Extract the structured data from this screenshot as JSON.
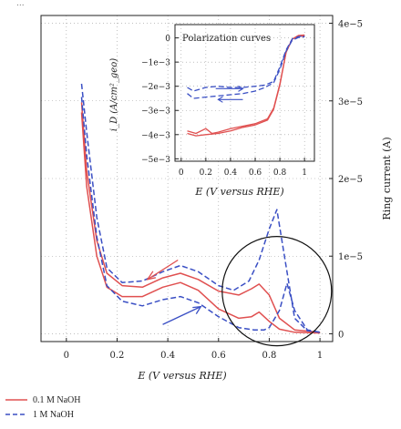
{
  "chart_data": [
    {
      "type": "line",
      "xlabel": "E (V versus RHE)",
      "ylabel_right": "Ring current (A)",
      "xlim": [
        -0.1,
        1.05
      ],
      "ylim": [
        -0.1,
        4.1
      ],
      "x_ticks": [
        {
          "value": 0,
          "label": "0"
        },
        {
          "value": 0.2,
          "label": "0.2"
        },
        {
          "value": 0.4,
          "label": "0.4"
        },
        {
          "value": 0.6,
          "label": "0.6"
        },
        {
          "value": 0.8,
          "label": "0.8"
        },
        {
          "value": 1.0,
          "label": "1"
        }
      ],
      "y_right_ticks": [
        {
          "value": 0,
          "label": "0"
        },
        {
          "value": 1,
          "label": "1e−5"
        },
        {
          "value": 2,
          "label": "2e−5"
        },
        {
          "value": 3,
          "label": "3e−5"
        },
        {
          "value": 4,
          "label": "4e−5"
        }
      ],
      "grid": true,
      "series": [
        {
          "name": "0.1 M NaOH",
          "color": "#e05050",
          "style": "solid",
          "segments": [
            {
              "x": [
                0.06,
                0.08,
                0.12,
                0.16,
                0.22,
                0.3,
                0.38,
                0.45,
                0.52,
                0.6,
                0.68,
                0.73,
                0.76,
                0.8,
                0.84,
                0.9,
                1.0
              ],
              "y": [
                2.98,
                2.1,
                1.2,
                0.78,
                0.62,
                0.6,
                0.72,
                0.78,
                0.7,
                0.55,
                0.5,
                0.58,
                0.64,
                0.5,
                0.2,
                0.05,
                0.02
              ]
            },
            {
              "x": [
                0.06,
                0.08,
                0.12,
                0.16,
                0.22,
                0.3,
                0.38,
                0.45,
                0.52,
                0.6,
                0.68,
                0.73,
                0.76,
                0.8,
                0.84,
                0.9,
                1.0
              ],
              "y": [
                2.85,
                1.9,
                1.0,
                0.6,
                0.48,
                0.48,
                0.6,
                0.66,
                0.56,
                0.32,
                0.2,
                0.22,
                0.28,
                0.16,
                0.06,
                0.02,
                0.01
              ]
            }
          ]
        },
        {
          "name": "1 M NaOH",
          "color": "#3a4fc4",
          "style": "dashed",
          "segments": [
            {
              "x": [
                0.06,
                0.08,
                0.12,
                0.16,
                0.22,
                0.3,
                0.38,
                0.45,
                0.52,
                0.6,
                0.66,
                0.72,
                0.76,
                0.8,
                0.83,
                0.86,
                0.9,
                0.95,
                1.0
              ],
              "y": [
                3.22,
                2.6,
                1.5,
                0.85,
                0.66,
                0.68,
                0.8,
                0.88,
                0.8,
                0.62,
                0.56,
                0.68,
                0.95,
                1.35,
                1.6,
                1.0,
                0.2,
                0.04,
                0.02
              ]
            },
            {
              "x": [
                0.06,
                0.08,
                0.12,
                0.16,
                0.22,
                0.3,
                0.38,
                0.45,
                0.52,
                0.6,
                0.68,
                0.74,
                0.78,
                0.8,
                0.84,
                0.87,
                0.9,
                0.95,
                1.0
              ],
              "y": [
                3.05,
                2.3,
                1.25,
                0.62,
                0.42,
                0.36,
                0.44,
                0.48,
                0.4,
                0.22,
                0.08,
                0.05,
                0.05,
                0.08,
                0.3,
                0.65,
                0.3,
                0.05,
                0.02
              ]
            }
          ]
        }
      ],
      "annotations": [
        "sweep-direction arrows (red: cathodic, blue: anodic)",
        "ellipse highlighting the 0.7–0.9 V region"
      ]
    },
    {
      "type": "line",
      "title": "Polarization curves",
      "xlabel": "E (V versus RHE)",
      "ylabel": "i_D (A/cm²_geo)",
      "xlim": [
        -0.05,
        1.08
      ],
      "ylim": [
        -5.1,
        0.55
      ],
      "x_ticks": [
        {
          "value": 0,
          "label": "0"
        },
        {
          "value": 0.2,
          "label": "0.2"
        },
        {
          "value": 0.4,
          "label": "0.4"
        },
        {
          "value": 0.6,
          "label": "0.6"
        },
        {
          "value": 0.8,
          "label": "0.8"
        },
        {
          "value": 1.0,
          "label": "1"
        }
      ],
      "y_ticks": [
        {
          "value": 0,
          "label": "0"
        },
        {
          "value": -1,
          "label": "−1e−3"
        },
        {
          "value": -2,
          "label": "−2e−3"
        },
        {
          "value": -3,
          "label": "−3e−3"
        },
        {
          "value": -4,
          "label": "−4e−3"
        },
        {
          "value": -5,
          "label": "−5e−3"
        }
      ],
      "grid": true,
      "series": [
        {
          "name": "0.1 M NaOH",
          "color": "#e05050",
          "style": "solid",
          "segments": [
            {
              "x": [
                0.05,
                0.12,
                0.2,
                0.25,
                0.3,
                0.4,
                0.5,
                0.6,
                0.7,
                0.75,
                0.8,
                0.85,
                0.9,
                0.95,
                1.0
              ],
              "y": [
                -3.85,
                -3.95,
                -3.75,
                -3.95,
                -3.9,
                -3.75,
                -3.65,
                -3.55,
                -3.35,
                -2.9,
                -1.9,
                -0.6,
                -0.05,
                0.1,
                0.12
              ]
            },
            {
              "x": [
                0.05,
                0.12,
                0.2,
                0.3,
                0.4,
                0.5,
                0.6,
                0.7,
                0.75,
                0.8,
                0.85,
                0.9,
                0.95,
                1.0
              ],
              "y": [
                -3.95,
                -4.05,
                -4.0,
                -3.95,
                -3.85,
                -3.7,
                -3.6,
                -3.4,
                -2.95,
                -1.95,
                -0.6,
                -0.05,
                0.06,
                0.08
              ]
            }
          ]
        },
        {
          "name": "1 M NaOH",
          "color": "#3a4fc4",
          "style": "dashed",
          "segments": [
            {
              "x": [
                0.05,
                0.1,
                0.2,
                0.3,
                0.4,
                0.5,
                0.6,
                0.68,
                0.75,
                0.8,
                0.85,
                0.9,
                0.95,
                1.0
              ],
              "y": [
                -2.05,
                -2.2,
                -2.05,
                -2.0,
                -2.05,
                -2.05,
                -2.0,
                -1.95,
                -1.8,
                -1.2,
                -0.5,
                -0.05,
                0.05,
                0.08
              ]
            },
            {
              "x": [
                0.05,
                0.1,
                0.2,
                0.3,
                0.4,
                0.5,
                0.6,
                0.68,
                0.75,
                0.8,
                0.85,
                0.9,
                0.95,
                1.0
              ],
              "y": [
                -2.3,
                -2.5,
                -2.45,
                -2.4,
                -2.35,
                -2.3,
                -2.2,
                -2.05,
                -1.85,
                -1.3,
                -0.55,
                -0.1,
                0.02,
                0.05
              ]
            }
          ]
        }
      ]
    }
  ],
  "legend": {
    "items": [
      {
        "label": "0.1 M NaOH",
        "color": "#e05050",
        "style": "solid"
      },
      {
        "label": "1 M NaOH",
        "color": "#3a4fc4",
        "style": "dashed"
      }
    ]
  },
  "top_fragment": "..."
}
